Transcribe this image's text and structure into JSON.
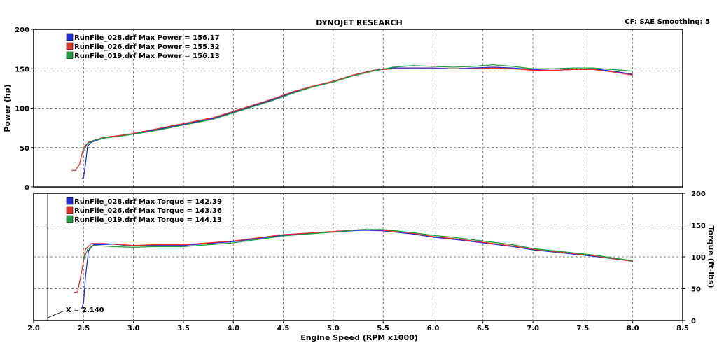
{
  "header": {
    "title": "DYNOJET RESEARCH",
    "settings": "CF: SAE  Smoothing: 5"
  },
  "colors": {
    "run_028": "#1f2fd8",
    "run_026": "#e03030",
    "run_019": "#20a040",
    "grid": "#555555",
    "frame": "#000000",
    "background": "#ffffff"
  },
  "chart_data": [
    {
      "type": "line",
      "title": "",
      "xlabel": "",
      "ylabel": "Power (hp)",
      "xlim": [
        2.0,
        8.5
      ],
      "ylim": [
        0,
        200
      ],
      "yticks": [
        "0",
        "50",
        "100",
        "150",
        "200"
      ],
      "grid": true,
      "legend": "top-left",
      "legend_entries": [
        "RunFile_028.drf Max Power = 156.17",
        "RunFile_026.drf Max Power = 155.32",
        "RunFile_019.drf Max Power = 156.13"
      ],
      "series": [
        {
          "key": "run_028",
          "x": [
            2.48,
            2.5,
            2.52,
            2.54,
            2.58,
            2.7,
            2.9,
            3.0,
            3.2,
            3.4,
            3.6,
            3.8,
            4.0,
            4.2,
            4.4,
            4.6,
            4.8,
            5.0,
            5.2,
            5.4,
            5.6,
            5.8,
            6.0,
            6.2,
            6.4,
            6.6,
            6.8,
            7.0,
            7.2,
            7.4,
            7.6,
            7.8,
            8.0
          ],
          "y": [
            10,
            12,
            30,
            52,
            57,
            62,
            66,
            67,
            72,
            77,
            82,
            87,
            95,
            103,
            111,
            120,
            128,
            134,
            142,
            148,
            151,
            151,
            151,
            150,
            151,
            152,
            151,
            149,
            148,
            149,
            150,
            147,
            143
          ]
        },
        {
          "key": "run_026",
          "x": [
            2.38,
            2.42,
            2.46,
            2.5,
            2.55,
            2.7,
            2.9,
            3.0,
            3.2,
            3.4,
            3.6,
            3.8,
            4.0,
            4.2,
            4.4,
            4.6,
            4.8,
            5.0,
            5.2,
            5.4,
            5.6,
            5.8,
            6.0,
            6.2,
            6.4,
            6.6,
            6.8,
            7.0,
            7.2,
            7.4,
            7.6,
            7.8,
            8.0
          ],
          "y": [
            21,
            21,
            29,
            50,
            57,
            63,
            66,
            68,
            73,
            78,
            83,
            88,
            96,
            104,
            112,
            121,
            128,
            134,
            142,
            148,
            150,
            150,
            150,
            150,
            150,
            151,
            150,
            148,
            148,
            149,
            149,
            146,
            142
          ]
        },
        {
          "key": "run_019",
          "x": [
            2.5,
            2.54,
            2.6,
            2.7,
            2.9,
            3.0,
            3.2,
            3.4,
            3.6,
            3.8,
            4.0,
            4.2,
            4.4,
            4.6,
            4.8,
            5.0,
            5.2,
            5.4,
            5.6,
            5.8,
            6.0,
            6.2,
            6.4,
            6.6,
            6.8,
            7.0,
            7.2,
            7.4,
            7.6,
            7.8,
            8.0
          ],
          "y": [
            46,
            55,
            59,
            62,
            65,
            67,
            71,
            76,
            81,
            86,
            94,
            102,
            110,
            119,
            127,
            133,
            141,
            147,
            152,
            154,
            153,
            152,
            153,
            155,
            153,
            150,
            150,
            151,
            151,
            149,
            147
          ]
        }
      ]
    },
    {
      "type": "line",
      "title": "",
      "xlabel": "Engine Speed (RPM x1000)",
      "ylabel": "Torque (ft-lbs)",
      "xlim": [
        2.0,
        8.5
      ],
      "ylim": [
        0,
        200
      ],
      "xticks": [
        "2.0",
        "2.5",
        "3.0",
        "3.5",
        "4.0",
        "4.5",
        "5.0",
        "5.5",
        "6.0",
        "6.5",
        "7.0",
        "7.5",
        "8.0",
        "8.5"
      ],
      "yticks": [
        "0",
        "50",
        "100",
        "150",
        "200"
      ],
      "grid": true,
      "legend": "top-left",
      "legend_entries": [
        "RunFile_028.drf Max Torque = 142.39",
        "RunFile_026.drf Max Torque = 143.36",
        "RunFile_019.drf Max Torque = 144.13"
      ],
      "cursor": {
        "label": "X = 2.140",
        "x": 2.14
      },
      "series": [
        {
          "key": "run_028",
          "x": [
            2.48,
            2.5,
            2.52,
            2.55,
            2.6,
            2.8,
            3.0,
            3.2,
            3.5,
            4.0,
            4.5,
            5.0,
            5.3,
            5.5,
            5.8,
            6.0,
            6.3,
            6.5,
            6.8,
            7.0,
            7.3,
            7.6,
            8.0
          ],
          "y": [
            18,
            28,
            70,
            110,
            119,
            120,
            117,
            118,
            118,
            124,
            134,
            139,
            142,
            141,
            136,
            131,
            126,
            122,
            116,
            111,
            106,
            101,
            93
          ]
        },
        {
          "key": "run_026",
          "x": [
            2.4,
            2.44,
            2.48,
            2.52,
            2.58,
            2.7,
            3.0,
            3.2,
            3.5,
            4.0,
            4.5,
            5.0,
            5.3,
            5.5,
            5.8,
            6.0,
            6.3,
            6.5,
            6.8,
            7.0,
            7.3,
            7.6,
            8.0
          ],
          "y": [
            44,
            45,
            76,
            112,
            121,
            121,
            118,
            119,
            119,
            125,
            135,
            140,
            143,
            142,
            137,
            132,
            127,
            123,
            117,
            112,
            107,
            102,
            93
          ]
        },
        {
          "key": "run_019",
          "x": [
            2.5,
            2.54,
            2.6,
            2.8,
            3.0,
            3.2,
            3.5,
            4.0,
            4.5,
            5.0,
            5.3,
            5.5,
            5.8,
            6.0,
            6.3,
            6.5,
            6.8,
            7.0,
            7.3,
            7.6,
            8.0
          ],
          "y": [
            95,
            112,
            118,
            116,
            115,
            116,
            116,
            122,
            133,
            139,
            143,
            143,
            138,
            134,
            129,
            125,
            119,
            113,
            108,
            103,
            94
          ]
        }
      ]
    }
  ]
}
